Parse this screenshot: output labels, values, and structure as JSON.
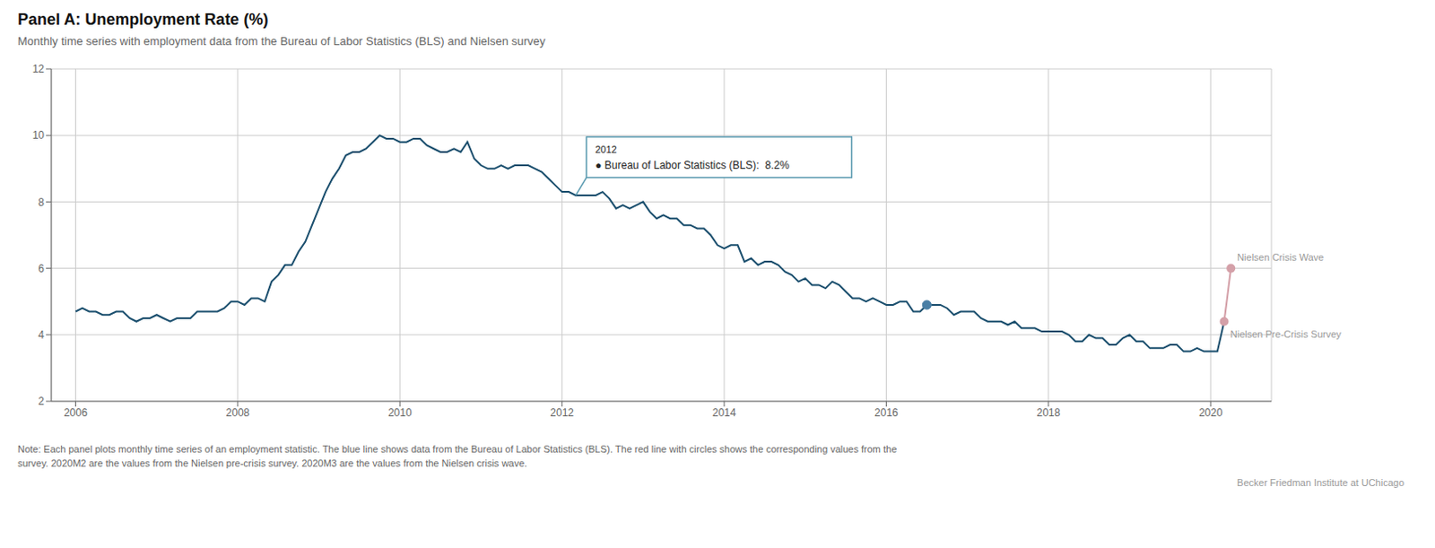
{
  "chart_data": {
    "type": "line",
    "title": "Panel A: Unemployment Rate (%)",
    "subtitle": "Monthly time series with employment data from the Bureau of Labor Statistics (BLS) and Nielsen survey",
    "notes": [
      "Note: Each panel plots monthly time series of an employment statistic. The blue line shows data from the Bureau of Labor Statistics (BLS). The red line with circles shows the corresponding values from the",
      "survey. 2020M2 are the values from the Nielsen pre-crisis survey. 2020M3 are the values from the Nielsen crisis wave."
    ],
    "source": "Becker Friedman Institute at UChicago",
    "xlim": [
      2005.7,
      2020.75
    ],
    "xticks": [
      2006,
      2008,
      2010,
      2012,
      2014,
      2016,
      2018,
      2020
    ],
    "ylim": [
      2,
      12
    ],
    "yticks": [
      2,
      4,
      6,
      8,
      10,
      12
    ],
    "grid": true,
    "series": [
      {
        "color": "#1b4f6e",
        "x": [
          2006,
          2006.083,
          2006.167,
          2006.25,
          2006.333,
          2006.417,
          2006.5,
          2006.583,
          2006.667,
          2006.75,
          2006.833,
          2006.917,
          2007,
          2007.083,
          2007.167,
          2007.25,
          2007.333,
          2007.417,
          2007.5,
          2007.583,
          2007.667,
          2007.75,
          2007.833,
          2007.917,
          2008,
          2008.083,
          2008.167,
          2008.25,
          2008.333,
          2008.417,
          2008.5,
          2008.583,
          2008.667,
          2008.75,
          2008.833,
          2008.917,
          2009,
          2009.083,
          2009.167,
          2009.25,
          2009.333,
          2009.417,
          2009.5,
          2009.583,
          2009.667,
          2009.75,
          2009.833,
          2009.917,
          2010,
          2010.083,
          2010.167,
          2010.25,
          2010.333,
          2010.417,
          2010.5,
          2010.583,
          2010.667,
          2010.75,
          2010.833,
          2010.917,
          2011,
          2011.083,
          2011.167,
          2011.25,
          2011.333,
          2011.417,
          2011.5,
          2011.583,
          2011.667,
          2011.75,
          2011.833,
          2011.917,
          2012,
          2012.083,
          2012.167,
          2012.25,
          2012.333,
          2012.417,
          2012.5,
          2012.583,
          2012.667,
          2012.75,
          2012.833,
          2012.917,
          2013,
          2013.083,
          2013.167,
          2013.25,
          2013.333,
          2013.417,
          2013.5,
          2013.583,
          2013.667,
          2013.75,
          2013.833,
          2013.917,
          2014,
          2014.083,
          2014.167,
          2014.25,
          2014.333,
          2014.417,
          2014.5,
          2014.583,
          2014.667,
          2014.75,
          2014.833,
          2014.917,
          2015,
          2015.083,
          2015.167,
          2015.25,
          2015.333,
          2015.417,
          2015.5,
          2015.583,
          2015.667,
          2015.75,
          2015.833,
          2015.917,
          2016,
          2016.083,
          2016.167,
          2016.25,
          2016.333,
          2016.417,
          2016.5,
          2016.583,
          2016.667,
          2016.75,
          2016.833,
          2016.917,
          2017,
          2017.083,
          2017.167,
          2017.25,
          2017.333,
          2017.417,
          2017.5,
          2017.583,
          2017.667,
          2017.75,
          2017.833,
          2017.917,
          2018,
          2018.083,
          2018.167,
          2018.25,
          2018.333,
          2018.417,
          2018.5,
          2018.583,
          2018.667,
          2018.75,
          2018.833,
          2018.917,
          2019,
          2019.083,
          2019.167,
          2019.25,
          2019.333,
          2019.417,
          2019.5,
          2019.583,
          2019.667,
          2019.75,
          2019.833,
          2019.917,
          2020,
          2020.083,
          2020.167
        ],
        "values": [
          4.7,
          4.8,
          4.7,
          4.7,
          4.6,
          4.6,
          4.7,
          4.7,
          4.5,
          4.4,
          4.5,
          4.5,
          4.6,
          4.5,
          4.4,
          4.5,
          4.5,
          4.5,
          4.7,
          4.7,
          4.7,
          4.7,
          4.8,
          5.0,
          5.0,
          4.9,
          5.1,
          5.1,
          5.0,
          5.6,
          5.8,
          6.1,
          6.1,
          6.5,
          6.8,
          7.3,
          7.8,
          8.3,
          8.7,
          9.0,
          9.4,
          9.5,
          9.5,
          9.6,
          9.8,
          10.0,
          9.9,
          9.9,
          9.8,
          9.8,
          9.9,
          9.9,
          9.7,
          9.6,
          9.5,
          9.5,
          9.6,
          9.5,
          9.8,
          9.3,
          9.1,
          9.0,
          9.0,
          9.1,
          9.0,
          9.1,
          9.1,
          9.1,
          9.0,
          8.9,
          8.7,
          8.5,
          8.3,
          8.3,
          8.2,
          8.2,
          8.2,
          8.2,
          8.3,
          8.1,
          7.8,
          7.9,
          7.8,
          7.9,
          8.0,
          7.7,
          7.5,
          7.6,
          7.5,
          7.5,
          7.3,
          7.3,
          7.2,
          7.2,
          7.0,
          6.7,
          6.6,
          6.7,
          6.7,
          6.2,
          6.3,
          6.1,
          6.2,
          6.2,
          6.1,
          5.9,
          5.8,
          5.6,
          5.7,
          5.5,
          5.5,
          5.4,
          5.6,
          5.5,
          5.3,
          5.1,
          5.1,
          5.0,
          5.1,
          5.0,
          4.9,
          4.9,
          5.0,
          5.0,
          4.7,
          4.7,
          4.9,
          4.9,
          4.9,
          4.8,
          4.6,
          4.7,
          4.7,
          4.7,
          4.5,
          4.4,
          4.4,
          4.4,
          4.3,
          4.4,
          4.2,
          4.2,
          4.2,
          4.1,
          4.1,
          4.1,
          4.1,
          4.0,
          3.8,
          3.8,
          4.0,
          3.9,
          3.9,
          3.7,
          3.7,
          3.9,
          4.0,
          3.8,
          3.8,
          3.6,
          3.6,
          3.6,
          3.7,
          3.7,
          3.5,
          3.5,
          3.6,
          3.5,
          3.5,
          3.5,
          4.4
        ]
      },
      {
        "color": "#d4a0a8",
        "marker": "circle",
        "x": [
          2020.167,
          2020.25
        ],
        "values": [
          4.4,
          6.0
        ]
      }
    ],
    "points": [
      {
        "x": 2016.5,
        "y": 4.9,
        "color": "#4a7fa5"
      }
    ],
    "annotations": [
      {
        "text": [
          "2012",
          "● Bureau of Labor Statistics (BLS):  8.2%"
        ],
        "x": 2012.17,
        "y": 8.2,
        "position": "tooltip"
      },
      {
        "text": "Nielsen Crisis Wave",
        "x": 2020.25,
        "y": 6.0,
        "position": "above"
      },
      {
        "text": "Nielsen Pre-Crisis Survey",
        "x": 2020.167,
        "y": 4.4,
        "position": "below"
      }
    ]
  }
}
